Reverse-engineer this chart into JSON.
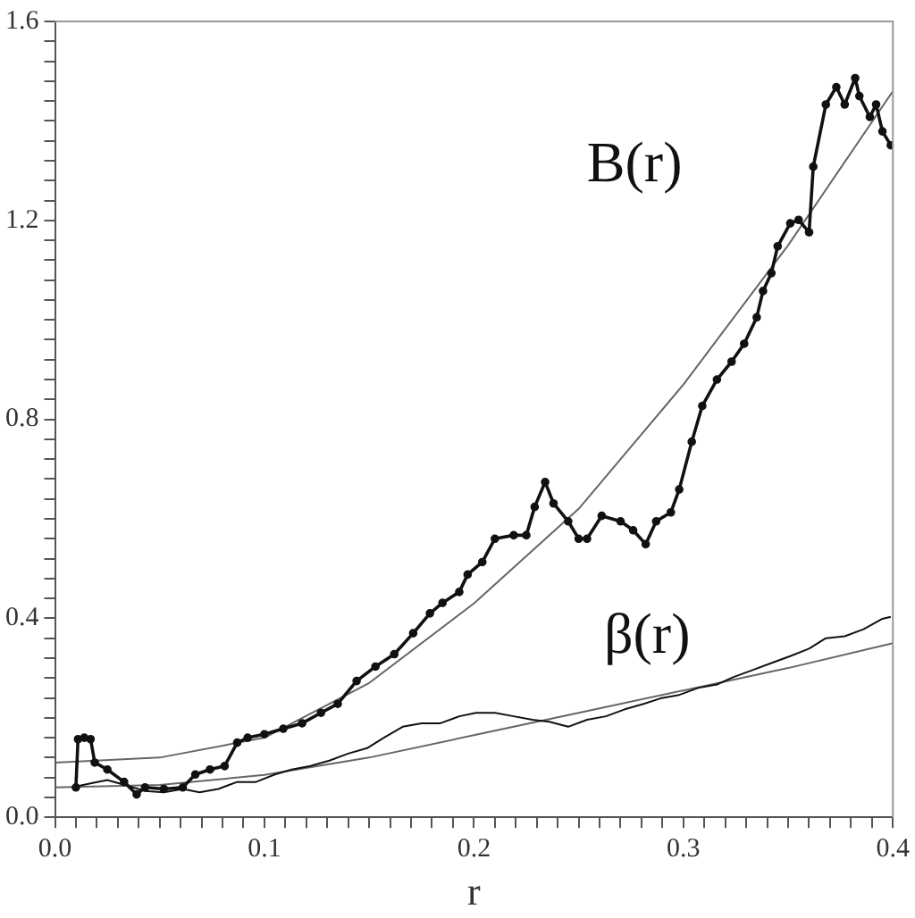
{
  "chart_data": {
    "type": "line",
    "xlabel": "r",
    "xlim": [
      0,
      0.4
    ],
    "ylim": [
      0,
      1.6
    ],
    "xticks": [
      {
        "value": 0,
        "label": "0.0"
      },
      {
        "value": 0.01,
        "label": null
      },
      {
        "value": 0.02,
        "label": null
      },
      {
        "value": 0.03,
        "label": null
      },
      {
        "value": 0.04,
        "label": null
      },
      {
        "value": 0.05,
        "label": null
      },
      {
        "value": 0.06,
        "label": null
      },
      {
        "value": 0.07,
        "label": null
      },
      {
        "value": 0.08,
        "label": null
      },
      {
        "value": 0.09,
        "label": null
      },
      {
        "value": 0.1,
        "label": "0.1"
      },
      {
        "value": 0.11,
        "label": null
      },
      {
        "value": 0.12,
        "label": null
      },
      {
        "value": 0.13,
        "label": null
      },
      {
        "value": 0.14,
        "label": null
      },
      {
        "value": 0.15,
        "label": null
      },
      {
        "value": 0.16,
        "label": null
      },
      {
        "value": 0.17,
        "label": null
      },
      {
        "value": 0.18,
        "label": null
      },
      {
        "value": 0.19,
        "label": null
      },
      {
        "value": 0.2,
        "label": "0.2"
      },
      {
        "value": 0.21,
        "label": null
      },
      {
        "value": 0.22,
        "label": null
      },
      {
        "value": 0.23,
        "label": null
      },
      {
        "value": 0.24,
        "label": null
      },
      {
        "value": 0.25,
        "label": null
      },
      {
        "value": 0.26,
        "label": null
      },
      {
        "value": 0.27,
        "label": null
      },
      {
        "value": 0.28,
        "label": null
      },
      {
        "value": 0.29,
        "label": null
      },
      {
        "value": 0.3,
        "label": "0.3"
      },
      {
        "value": 0.31,
        "label": null
      },
      {
        "value": 0.32,
        "label": null
      },
      {
        "value": 0.33,
        "label": null
      },
      {
        "value": 0.34,
        "label": null
      },
      {
        "value": 0.35,
        "label": null
      },
      {
        "value": 0.36,
        "label": null
      },
      {
        "value": 0.37,
        "label": null
      },
      {
        "value": 0.38,
        "label": null
      },
      {
        "value": 0.39,
        "label": null
      },
      {
        "value": 0.4,
        "label": "0.4"
      }
    ],
    "yticks": [
      {
        "value": 0,
        "label": "0.0"
      },
      {
        "value": 0.04,
        "label": null
      },
      {
        "value": 0.08,
        "label": null
      },
      {
        "value": 0.12,
        "label": null
      },
      {
        "value": 0.16,
        "label": null
      },
      {
        "value": 0.2,
        "label": null
      },
      {
        "value": 0.24,
        "label": null
      },
      {
        "value": 0.28,
        "label": null
      },
      {
        "value": 0.32,
        "label": null
      },
      {
        "value": 0.36,
        "label": null
      },
      {
        "value": 0.4,
        "label": "0.4"
      },
      {
        "value": 0.44,
        "label": null
      },
      {
        "value": 0.48,
        "label": null
      },
      {
        "value": 0.52,
        "label": null
      },
      {
        "value": 0.56,
        "label": null
      },
      {
        "value": 0.6,
        "label": null
      },
      {
        "value": 0.64,
        "label": null
      },
      {
        "value": 0.68,
        "label": null
      },
      {
        "value": 0.72,
        "label": null
      },
      {
        "value": 0.76,
        "label": null
      },
      {
        "value": 0.8,
        "label": "0.8"
      },
      {
        "value": 0.84,
        "label": null
      },
      {
        "value": 0.88,
        "label": null
      },
      {
        "value": 0.92,
        "label": null
      },
      {
        "value": 0.96,
        "label": null
      },
      {
        "value": 1.0,
        "label": null
      },
      {
        "value": 1.04,
        "label": null
      },
      {
        "value": 1.08,
        "label": null
      },
      {
        "value": 1.12,
        "label": null
      },
      {
        "value": 1.16,
        "label": null
      },
      {
        "value": 1.2,
        "label": "1.2"
      },
      {
        "value": 1.24,
        "label": null
      },
      {
        "value": 1.28,
        "label": null
      },
      {
        "value": 1.32,
        "label": null
      },
      {
        "value": 1.36,
        "label": null
      },
      {
        "value": 1.4,
        "label": null
      },
      {
        "value": 1.44,
        "label": null
      },
      {
        "value": 1.48,
        "label": null
      },
      {
        "value": 1.52,
        "label": null
      },
      {
        "value": 1.56,
        "label": null
      },
      {
        "value": 1.6,
        "label": "1.6"
      }
    ],
    "series": [
      {
        "name": "B(r)",
        "color": "#111111",
        "marker": "circle",
        "x": [
          0.01,
          0.011,
          0.014,
          0.017,
          0.019,
          0.025,
          0.033,
          0.039,
          0.043,
          0.052,
          0.061,
          0.067,
          0.074,
          0.081,
          0.087,
          0.092,
          0.1,
          0.109,
          0.118,
          0.127,
          0.135,
          0.144,
          0.153,
          0.162,
          0.171,
          0.179,
          0.185,
          0.193,
          0.197,
          0.204,
          0.21,
          0.219,
          0.225,
          0.229,
          0.234,
          0.238,
          0.245,
          0.25,
          0.254,
          0.261,
          0.27,
          0.276,
          0.282,
          0.287,
          0.294,
          0.298,
          0.304,
          0.309,
          0.316,
          0.323,
          0.329,
          0.335,
          0.338,
          0.342,
          0.345,
          0.351,
          0.355,
          0.36,
          0.362,
          0.368,
          0.373,
          0.377,
          0.382,
          0.384,
          0.389,
          0.392,
          0.395,
          0.399
        ],
        "values": [
          0.06,
          0.157,
          0.16,
          0.157,
          0.11,
          0.096,
          0.071,
          0.046,
          0.06,
          0.057,
          0.06,
          0.086,
          0.096,
          0.103,
          0.15,
          0.16,
          0.167,
          0.178,
          0.189,
          0.21,
          0.228,
          0.274,
          0.303,
          0.328,
          0.37,
          0.41,
          0.431,
          0.453,
          0.488,
          0.513,
          0.56,
          0.567,
          0.567,
          0.624,
          0.674,
          0.631,
          0.595,
          0.56,
          0.56,
          0.606,
          0.595,
          0.577,
          0.549,
          0.595,
          0.613,
          0.659,
          0.755,
          0.827,
          0.88,
          0.916,
          0.952,
          1.005,
          1.058,
          1.094,
          1.148,
          1.194,
          1.201,
          1.176,
          1.308,
          1.433,
          1.468,
          1.433,
          1.486,
          1.45,
          1.408,
          1.433,
          1.379,
          1.351
        ]
      },
      {
        "color": "#666666",
        "x": [
          0,
          0.05,
          0.1,
          0.15,
          0.2,
          0.25,
          0.3,
          0.35,
          0.4
        ],
        "values": [
          0.11,
          0.12,
          0.16,
          0.27,
          0.43,
          0.62,
          0.87,
          1.15,
          1.46
        ]
      },
      {
        "name": "β(r)",
        "color": "#111111",
        "x": [
          0.008,
          0.017,
          0.025,
          0.034,
          0.043,
          0.052,
          0.061,
          0.069,
          0.078,
          0.087,
          0.096,
          0.105,
          0.113,
          0.122,
          0.131,
          0.14,
          0.149,
          0.157,
          0.166,
          0.175,
          0.184,
          0.193,
          0.201,
          0.21,
          0.219,
          0.228,
          0.236,
          0.245,
          0.254,
          0.263,
          0.272,
          0.281,
          0.289,
          0.298,
          0.307,
          0.316,
          0.324,
          0.333,
          0.342,
          0.351,
          0.36,
          0.368,
          0.377,
          0.386,
          0.395,
          0.399
        ],
        "values": [
          0.06,
          0.068,
          0.075,
          0.064,
          0.053,
          0.05,
          0.057,
          0.05,
          0.057,
          0.071,
          0.071,
          0.086,
          0.096,
          0.103,
          0.114,
          0.128,
          0.139,
          0.16,
          0.182,
          0.189,
          0.189,
          0.203,
          0.21,
          0.21,
          0.203,
          0.196,
          0.192,
          0.182,
          0.196,
          0.203,
          0.217,
          0.228,
          0.239,
          0.246,
          0.26,
          0.267,
          0.282,
          0.296,
          0.31,
          0.324,
          0.339,
          0.36,
          0.364,
          0.378,
          0.399,
          0.403
        ]
      },
      {
        "color": "#666666",
        "x": [
          0,
          0.05,
          0.1,
          0.15,
          0.2,
          0.25,
          0.3,
          0.35,
          0.4
        ],
        "values": [
          0.06,
          0.065,
          0.085,
          0.12,
          0.165,
          0.21,
          0.255,
          0.3,
          0.35
        ]
      }
    ]
  }
}
